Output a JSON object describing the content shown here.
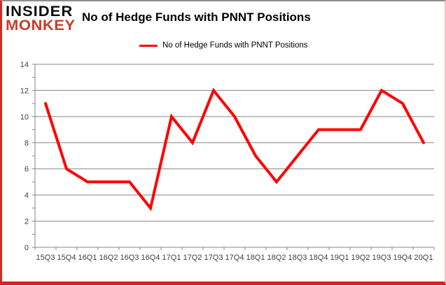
{
  "logo": {
    "line1": "INSIDER",
    "line2": "MONKEY"
  },
  "header": {
    "title": "No of Hedge Funds with PNNT Positions"
  },
  "legend": {
    "label": "No of Hedge Funds with PNNT Positions",
    "line_color": "#ff0000"
  },
  "chart_data": {
    "type": "line",
    "title": "No of Hedge Funds with PNNT Positions",
    "categories": [
      "15Q3",
      "15Q4",
      "16Q1",
      "16Q2",
      "16Q3",
      "16Q4",
      "17Q1",
      "17Q2",
      "17Q3",
      "17Q4",
      "18Q1",
      "18Q2",
      "18Q3",
      "18Q4",
      "19Q1",
      "19Q2",
      "19Q3",
      "19Q4",
      "20Q1"
    ],
    "series": [
      {
        "name": "No of Hedge Funds with PNNT Positions",
        "color": "#ff0000",
        "values": [
          11,
          6,
          5,
          5,
          5,
          3,
          10,
          8,
          12,
          10,
          7,
          5,
          7,
          9,
          9,
          9,
          12,
          11,
          8
        ]
      }
    ],
    "xlabel": "",
    "ylabel": "",
    "ylim": [
      0,
      14
    ],
    "ytick_step": 2,
    "grid": true,
    "legend_position": "top-center"
  },
  "colors": {
    "line": "#ff0000",
    "grid": "#848484",
    "axis_text": "#3f3f3f",
    "logo_black": "#0d0d0d",
    "logo_red": "#cd3a2a"
  }
}
